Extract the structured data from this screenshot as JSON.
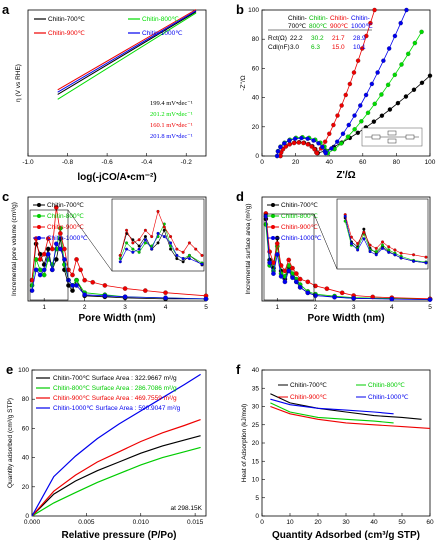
{
  "chart_data": [
    {
      "panel": "a",
      "type": "line",
      "xlabel": "log(-jCO/A•cm⁻²)",
      "ylabel": "η (V vs RHE)",
      "xlim": [
        -1.0,
        -0.1
      ],
      "ylim": [
        -0.1,
        0.5
      ],
      "xticks": [
        "-1.0",
        "-0.8",
        "-0.6",
        "-0.4",
        "-0.2"
      ],
      "series": [
        {
          "name": "Chitin-700℃",
          "color": "#000000",
          "x": [
            -0.85,
            -0.15
          ],
          "y": [
            0.153,
            0.493
          ],
          "slope_label": "199.4 mV•dec⁻¹"
        },
        {
          "name": "Chitin-800℃",
          "color": "#00dd00",
          "x": [
            -0.85,
            -0.15
          ],
          "y": [
            0.133,
            0.488
          ],
          "slope_label": "201.2 mV•dec⁻¹"
        },
        {
          "name": "Chitin-900℃",
          "color": "#ee0000",
          "x": [
            -0.85,
            -0.15
          ],
          "y": [
            0.172,
            0.502
          ],
          "slope_label": "160.1 mV•dec⁻¹"
        },
        {
          "name": "Chitin-1000℃",
          "color": "#0000ee",
          "x": [
            -0.85,
            -0.15
          ],
          "y": [
            0.162,
            0.497
          ],
          "slope_label": "201.8 mV•dec⁻¹"
        }
      ]
    },
    {
      "panel": "b",
      "type": "scatter",
      "xlabel": "Z'/Ω",
      "ylabel": "-Z''/Ω",
      "xlim": [
        0,
        100
      ],
      "ylim": [
        0,
        100
      ],
      "xticks": [
        0,
        20,
        40,
        60,
        80,
        100
      ],
      "yticks": [
        0,
        20,
        40,
        60,
        80,
        100
      ],
      "table": {
        "header": [
          "",
          "Chitin-\n700℃",
          "Chitin-\n800℃",
          "Chitin-\n900℃",
          "Chitin-\n1000℃"
        ],
        "rows": [
          [
            "Rct(Ω)",
            "22.2",
            "30.2",
            "21.7",
            "28.9"
          ],
          [
            "Cdl(nF)",
            "3.0",
            "6.3",
            "15.0",
            "10.1"
          ]
        ]
      },
      "series": [
        {
          "name": "Chitin-700℃",
          "color": "#000000",
          "rs": 11,
          "rct": 22.2,
          "tail_end": [
            100,
            55
          ]
        },
        {
          "name": "Chitin-800℃",
          "color": "#00dd00",
          "rs": 9,
          "rct": 30.2,
          "tail_end": [
            95,
            85
          ]
        },
        {
          "name": "Chitin-900℃",
          "color": "#ee0000",
          "rs": 11,
          "rct": 21.7,
          "tail_end": [
            67,
            100
          ]
        },
        {
          "name": "Chitin-1000℃",
          "color": "#0000ee",
          "rs": 9,
          "rct": 28.9,
          "tail_end": [
            86,
            100
          ]
        }
      ]
    },
    {
      "panel": "c",
      "type": "line",
      "xlabel": "Pore Width (nm)",
      "ylabel": "Incremental pore volume (cm³/g)",
      "xlim": [
        0.6,
        5
      ],
      "xticks": [
        1,
        2,
        3,
        4,
        5
      ],
      "legend": [
        "Chitin-700℃",
        "Chitin-800℃",
        "Chitin-900℃",
        "Chitin-1000℃"
      ],
      "series": [
        {
          "name": "Chitin-700℃",
          "color": "#000000",
          "x": [
            0.7,
            0.8,
            0.9,
            1.0,
            1.1,
            1.2,
            1.3,
            1.4,
            1.5,
            1.6,
            1.7,
            1.8,
            2.0,
            2.5,
            3,
            4,
            5
          ],
          "y": [
            0.02,
            0.055,
            0.045,
            0.035,
            0.05,
            0.03,
            0.04,
            0.06,
            0.03,
            0.015,
            0.01,
            0.02,
            0.005,
            0.004,
            0.003,
            0.002,
            0.002
          ]
        },
        {
          "name": "Chitin-800℃",
          "color": "#00cc00",
          "x": [
            0.7,
            0.8,
            0.9,
            1.0,
            1.1,
            1.2,
            1.3,
            1.4,
            1.5,
            1.6,
            1.7,
            1.8,
            2.0,
            2.5,
            3,
            4,
            5
          ],
          "y": [
            0.015,
            0.04,
            0.03,
            0.025,
            0.04,
            0.035,
            0.05,
            0.07,
            0.035,
            0.02,
            0.015,
            0.02,
            0.008,
            0.006,
            0.004,
            0.003,
            0.002
          ]
        },
        {
          "name": "Chitin-900℃",
          "color": "#ee0000",
          "x": [
            0.7,
            0.8,
            0.9,
            1.0,
            1.1,
            1.2,
            1.3,
            1.4,
            1.5,
            1.6,
            1.7,
            1.8,
            1.9,
            2.0,
            2.2,
            2.5,
            3,
            3.5,
            4,
            5
          ],
          "y": [
            0.02,
            0.06,
            0.04,
            0.045,
            0.06,
            0.05,
            0.09,
            0.065,
            0.05,
            0.03,
            0.025,
            0.04,
            0.03,
            0.02,
            0.018,
            0.015,
            0.012,
            0.01,
            0.008,
            0.005
          ]
        },
        {
          "name": "Chitin-1000℃",
          "color": "#0000ee",
          "x": [
            0.7,
            0.8,
            0.9,
            1.0,
            1.1,
            1.2,
            1.3,
            1.4,
            1.5,
            1.6,
            1.7,
            1.8,
            2.0,
            2.5,
            3,
            4,
            5
          ],
          "y": [
            0.01,
            0.03,
            0.025,
            0.03,
            0.045,
            0.03,
            0.055,
            0.05,
            0.04,
            0.02,
            0.015,
            0.015,
            0.006,
            0.005,
            0.004,
            0.003,
            0.002
          ]
        }
      ]
    },
    {
      "panel": "d",
      "type": "line",
      "xlabel": "Pore Width (nm)",
      "ylabel": "Incremental surface area (m²/g)",
      "xlim": [
        0.6,
        5
      ],
      "xticks": [
        1,
        2,
        3,
        4,
        5
      ],
      "legend": [
        "Chitin-700℃",
        "Chitin-800℃",
        "Chitin-900℃",
        "Chitin-1000℃"
      ],
      "series": [
        {
          "name": "Chitin-700℃",
          "color": "#000000",
          "x": [
            0.7,
            0.8,
            0.9,
            1.0,
            1.1,
            1.2,
            1.3,
            1.4,
            1.5,
            1.6,
            1.8,
            2.0,
            2.5,
            3,
            4,
            5
          ],
          "y": [
            300,
            150,
            120,
            230,
            110,
            80,
            120,
            90,
            70,
            50,
            30,
            20,
            15,
            10,
            8,
            6
          ]
        },
        {
          "name": "Chitin-800℃",
          "color": "#00cc00",
          "x": [
            0.7,
            0.8,
            0.9,
            1.0,
            1.1,
            1.2,
            1.3,
            1.4,
            1.5,
            1.6,
            1.8,
            2.0,
            2.5,
            3,
            4,
            5
          ],
          "y": [
            280,
            130,
            110,
            200,
            100,
            90,
            130,
            100,
            80,
            60,
            35,
            25,
            18,
            12,
            9,
            7
          ]
        },
        {
          "name": "Chitin-900℃",
          "color": "#ee0000",
          "x": [
            0.7,
            0.8,
            0.9,
            1.0,
            1.1,
            1.2,
            1.3,
            1.4,
            1.5,
            1.6,
            1.8,
            2.0,
            2.3,
            2.7,
            3,
            3.5,
            4,
            5
          ],
          "y": [
            320,
            180,
            140,
            210,
            130,
            110,
            150,
            120,
            100,
            80,
            70,
            55,
            45,
            30,
            20,
            15,
            12,
            8
          ]
        },
        {
          "name": "Chitin-1000℃",
          "color": "#0000ee",
          "x": [
            0.7,
            0.8,
            0.9,
            1.0,
            1.1,
            1.2,
            1.3,
            1.4,
            1.5,
            1.6,
            1.8,
            2.0,
            2.5,
            3,
            4,
            5
          ],
          "y": [
            310,
            140,
            100,
            170,
            90,
            70,
            110,
            85,
            70,
            50,
            30,
            20,
            14,
            10,
            7,
            5
          ]
        }
      ]
    },
    {
      "panel": "e",
      "type": "line",
      "xlabel": "Relative pressure (P/Po)",
      "ylabel": "Quantity adsorbed (cm³/g STP)",
      "xlim": [
        0,
        0.016
      ],
      "ylim": [
        0,
        100
      ],
      "xticks": [
        "0.000",
        "0.005",
        "0.010",
        "0.015"
      ],
      "yticks": [
        0,
        20,
        40,
        60,
        80,
        100
      ],
      "annotation": "at 298.15K",
      "series": [
        {
          "name": "Chitin-700℃ Surface Area : 322.9667 m²/g",
          "color": "#000000",
          "x": [
            0,
            0.002,
            0.004,
            0.006,
            0.008,
            0.01,
            0.012,
            0.014,
            0.0155
          ],
          "y": [
            0,
            15,
            24,
            31,
            37,
            43,
            48,
            52,
            55
          ]
        },
        {
          "name": "Chitin-800℃ Surface Area : 286.7086 m²/g",
          "color": "#00cc00",
          "x": [
            0,
            0.002,
            0.004,
            0.006,
            0.008,
            0.01,
            0.012,
            0.014,
            0.0155
          ],
          "y": [
            0,
            9,
            16,
            23,
            29,
            35,
            40,
            44,
            47
          ]
        },
        {
          "name": "Chitin-900℃ Surface Area : 469.7559 m²/g",
          "color": "#ee0000",
          "x": [
            0,
            0.002,
            0.004,
            0.006,
            0.008,
            0.01,
            0.012,
            0.014,
            0.0155
          ],
          "y": [
            0,
            17,
            28,
            37,
            44,
            51,
            57,
            62,
            66
          ]
        },
        {
          "name": "Chitin-1000℃ Surface Area : 590.9047 m²/g",
          "color": "#0000ee",
          "x": [
            0,
            0.002,
            0.004,
            0.006,
            0.008,
            0.01,
            0.012,
            0.014,
            0.0155
          ],
          "y": [
            0,
            27,
            41,
            53,
            63,
            72,
            81,
            90,
            97
          ]
        }
      ]
    },
    {
      "panel": "f",
      "type": "line",
      "xlabel": "Quantity Adsorbed (cm³/g STP)",
      "ylabel": "Heat of Adsorption (kJ/mol)",
      "xlim": [
        0,
        60
      ],
      "ylim": [
        0,
        40
      ],
      "xticks": [
        0,
        10,
        20,
        30,
        40,
        50,
        60
      ],
      "yticks": [
        0,
        5,
        10,
        15,
        20,
        25,
        30,
        35,
        40
      ],
      "legend": [
        "Chitin-700℃",
        "Chitin-800℃",
        "Chitin-900℃",
        "Chitin-1000℃"
      ],
      "series": [
        {
          "name": "Chitin-700℃",
          "color": "#000000",
          "x": [
            3,
            10,
            20,
            30,
            40,
            50,
            57
          ],
          "y": [
            33.5,
            31,
            29.5,
            28.5,
            27.5,
            27,
            26.5
          ]
        },
        {
          "name": "Chitin-800℃",
          "color": "#00cc00",
          "x": [
            3,
            10,
            20,
            30,
            40,
            47
          ],
          "y": [
            31,
            28.5,
            27,
            26.5,
            26,
            25.5
          ]
        },
        {
          "name": "Chitin-900℃",
          "color": "#ee0000",
          "x": [
            3,
            10,
            20,
            30,
            40,
            50,
            60
          ],
          "y": [
            30,
            28,
            26.5,
            25.5,
            25,
            24.5,
            24
          ]
        },
        {
          "name": "Chitin-1000℃",
          "color": "#0000ee",
          "x": [
            3,
            10,
            20,
            30,
            40,
            47
          ],
          "y": [
            32,
            30.5,
            29.5,
            29,
            28.5,
            28
          ]
        }
      ]
    }
  ]
}
